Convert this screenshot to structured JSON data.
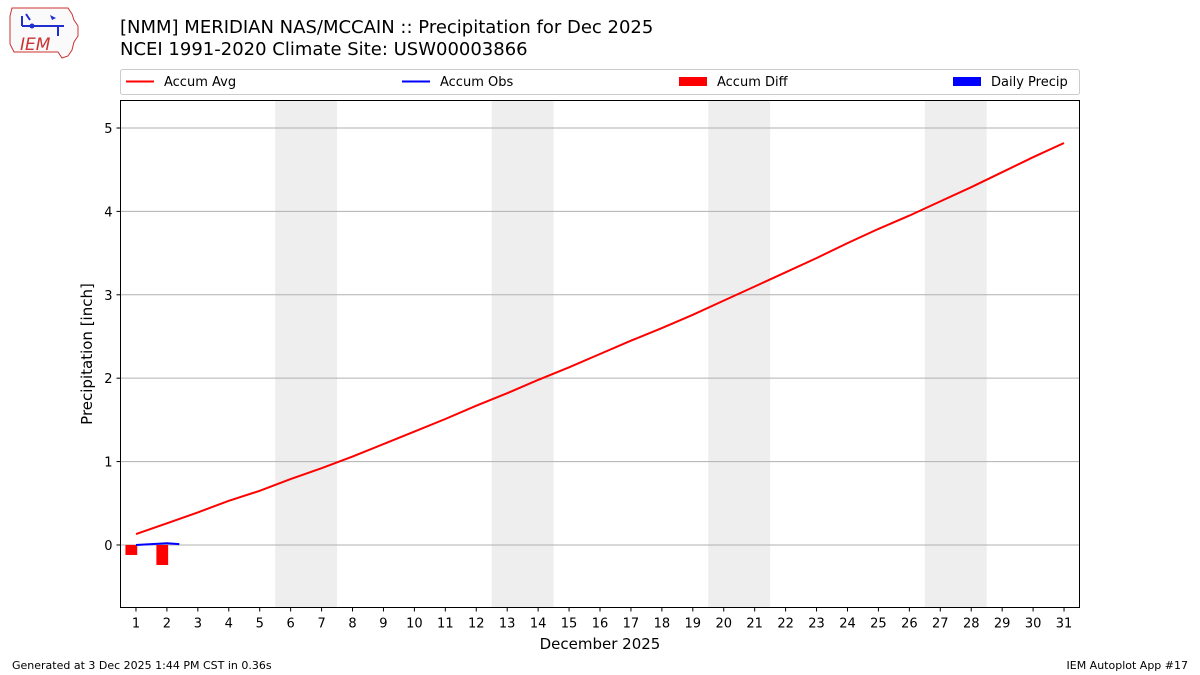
{
  "header": {
    "title_line1": "[NMM] MERIDIAN NAS/MCCAIN :: Precipitation for Dec 2025",
    "title_line2": "NCEI 1991-2020 Climate Site: USW00003866"
  },
  "logo": {
    "text": "IEM"
  },
  "footer": {
    "left": "Generated at 3 Dec 2025 1:44 PM CST in 0.36s",
    "right": "IEM Autoplot App #17"
  },
  "colors": {
    "accum_avg": "#ff0000",
    "accum_obs": "#0000ff",
    "accum_diff": "#ff0000",
    "daily_precip": "#0000ff",
    "weekend_shade": "#eeeeee",
    "grid": "#b0b0b0"
  },
  "chart_data": {
    "type": "line",
    "xlabel": "December 2025",
    "ylabel": "Precipitation [inch]",
    "xlim": [
      0.5,
      31.5
    ],
    "ylim": [
      -0.75,
      5.33
    ],
    "yticks": [
      0,
      1,
      2,
      3,
      4,
      5
    ],
    "xticks": [
      1,
      2,
      3,
      4,
      5,
      6,
      7,
      8,
      9,
      10,
      11,
      12,
      13,
      14,
      15,
      16,
      17,
      18,
      19,
      20,
      21,
      22,
      23,
      24,
      25,
      26,
      27,
      28,
      29,
      30,
      31
    ],
    "grid": "horizontal",
    "legend_placement": "top",
    "legend": [
      "Accum Avg",
      "Accum Obs",
      "Accum Diff",
      "Daily Precip"
    ],
    "weekends": [
      [
        6,
        7
      ],
      [
        13,
        14
      ],
      [
        20,
        21
      ],
      [
        27,
        28
      ]
    ],
    "series": [
      {
        "name": "Accum Avg",
        "kind": "line",
        "x": [
          1,
          2,
          3,
          4,
          5,
          6,
          7,
          8,
          9,
          10,
          11,
          12,
          13,
          14,
          15,
          16,
          17,
          18,
          19,
          20,
          21,
          22,
          23,
          24,
          25,
          26,
          27,
          28,
          29,
          30,
          31
        ],
        "values": [
          0.13,
          0.26,
          0.39,
          0.53,
          0.65,
          0.79,
          0.92,
          1.06,
          1.21,
          1.36,
          1.51,
          1.67,
          1.82,
          1.98,
          2.13,
          2.29,
          2.45,
          2.6,
          2.76,
          2.93,
          3.1,
          3.27,
          3.44,
          3.62,
          3.79,
          3.95,
          4.12,
          4.29,
          4.47,
          4.65,
          4.82
        ]
      },
      {
        "name": "Accum Obs",
        "kind": "line",
        "x": [
          1,
          2,
          2.4
        ],
        "values": [
          0.0,
          0.02,
          0.01
        ]
      },
      {
        "name": "Accum Diff",
        "kind": "bar",
        "x": [
          1,
          2
        ],
        "values": [
          -0.12,
          -0.24
        ]
      },
      {
        "name": "Daily Precip",
        "kind": "bar",
        "x": [
          1,
          2
        ],
        "values": [
          0.0,
          0.0
        ]
      }
    ]
  }
}
